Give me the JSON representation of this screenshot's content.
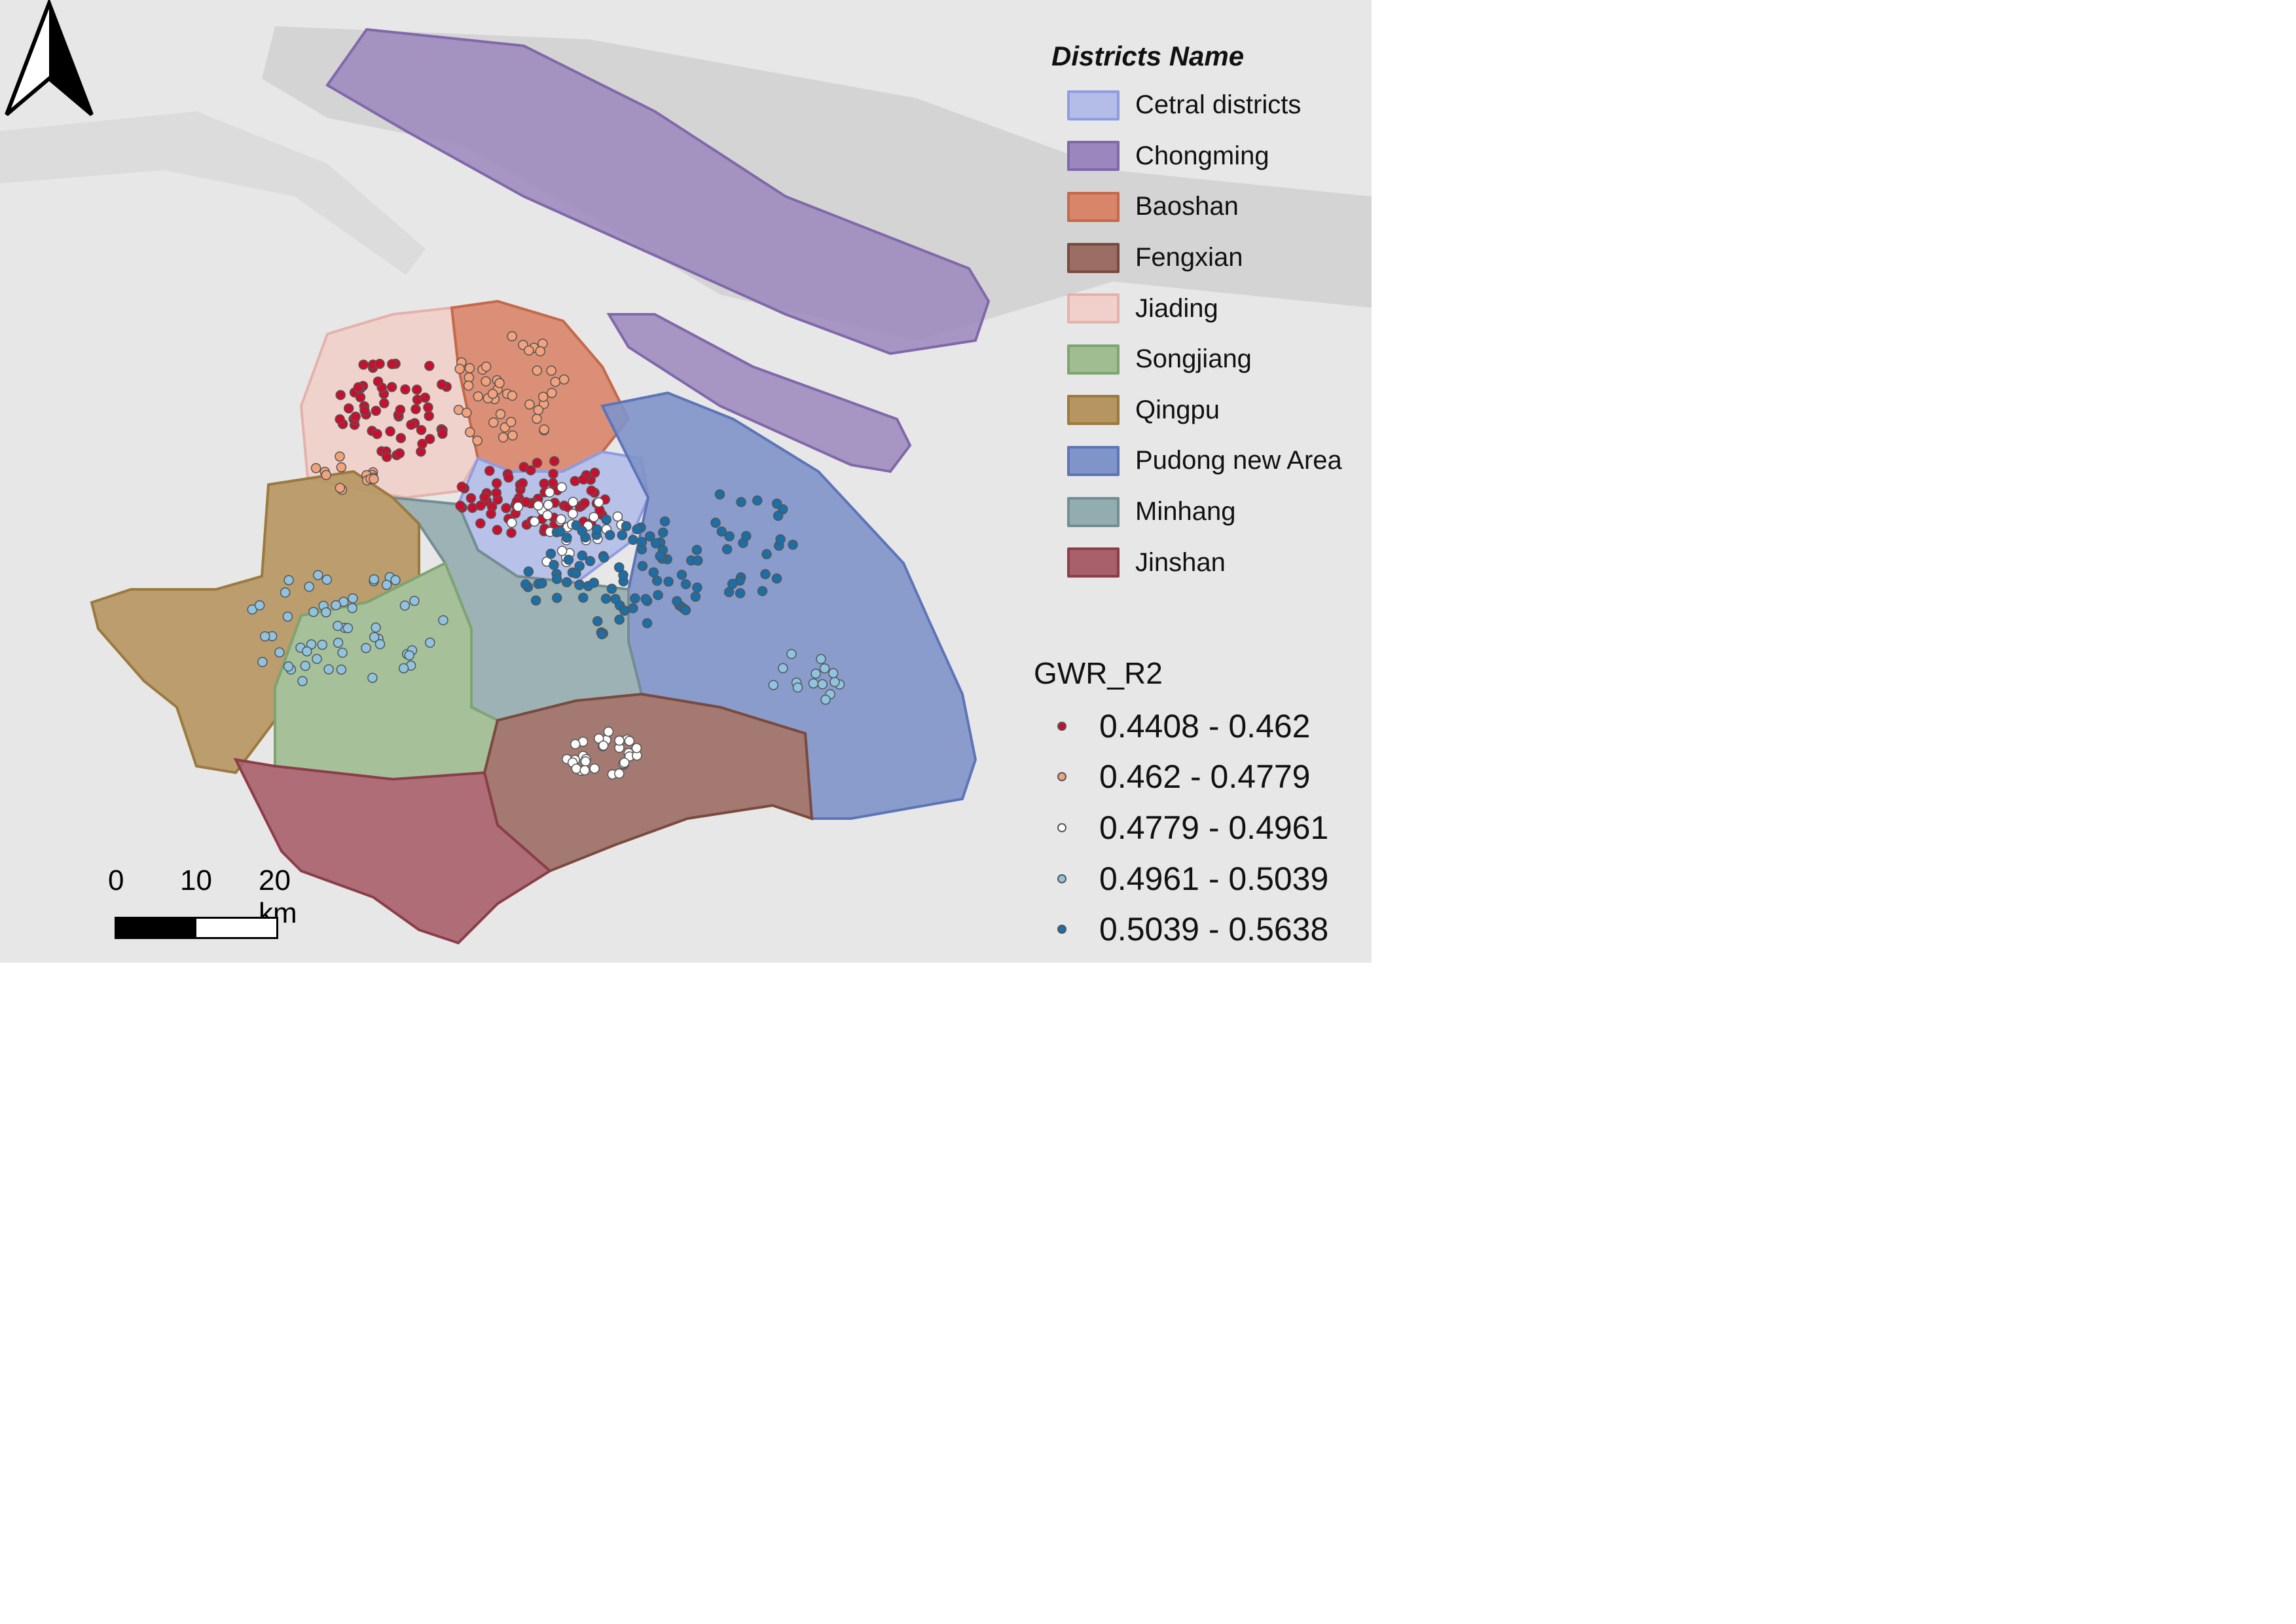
{
  "map": {
    "north_arrow": "north-arrow-icon",
    "background_color": "#e7e7e7",
    "water_color": "#cfcfcf"
  },
  "district_legend": {
    "title": "Districts Name",
    "items": [
      {
        "label": "Cetral districts",
        "color": "#b3bde8",
        "border": "#8f9ce0"
      },
      {
        "label": "Chongming",
        "color": "#9b87bd",
        "border": "#8068aa"
      },
      {
        "label": "Baoshan",
        "color": "#d9856a",
        "border": "#c46a4b"
      },
      {
        "label": "Fengxian",
        "color": "#9b6d64",
        "border": "#7a4a3f"
      },
      {
        "label": "Jiading",
        "color": "#f1cfca",
        "border": "#e4b2aa"
      },
      {
        "label": "Songjiang",
        "color": "#9fbd90",
        "border": "#7fa472"
      },
      {
        "label": "Qingpu",
        "color": "#b69560",
        "border": "#9a7a3f"
      },
      {
        "label": "Pudong new Area",
        "color": "#7f94c9",
        "border": "#5d75b8"
      },
      {
        "label": "Minhang",
        "color": "#93acaf",
        "border": "#728e93"
      },
      {
        "label": "Jinshan",
        "color": "#a8606a",
        "border": "#8a3e49"
      }
    ]
  },
  "r2_legend": {
    "title": "GWR_R2",
    "classes": [
      {
        "label": "0.4408 - 0.462",
        "color": "#c8102e"
      },
      {
        "label": "0.462 - 0.4779",
        "color": "#f2a27c"
      },
      {
        "label": "0.4779 - 0.4961",
        "color": "#ffffff"
      },
      {
        "label": "0.4961 - 0.5039",
        "color": "#8fc3df"
      },
      {
        "label": "0.5039 - 0.5638",
        "color": "#1b6ea6"
      }
    ]
  },
  "scale_bar": {
    "ticks": [
      "0",
      "10",
      "20 km"
    ]
  }
}
